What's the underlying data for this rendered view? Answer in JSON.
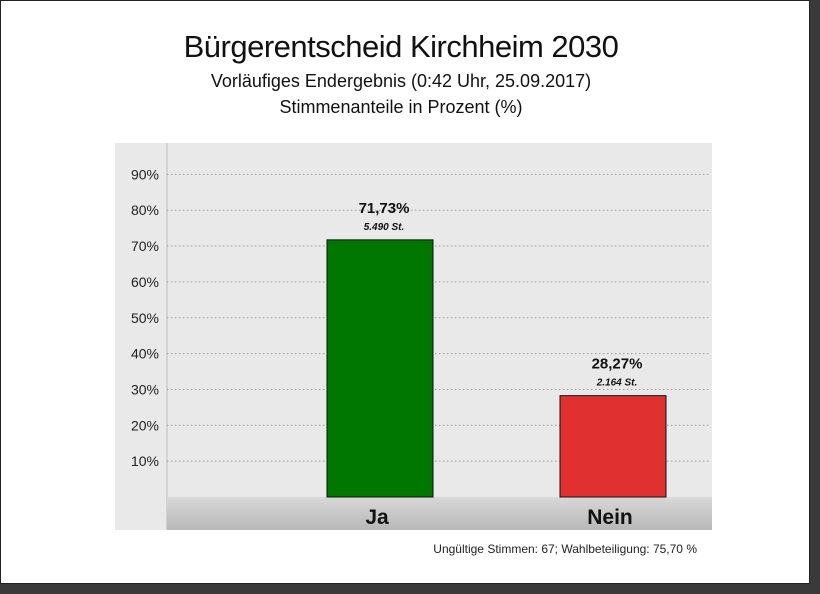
{
  "chart_data": {
    "type": "bar",
    "title": "Bürgerentscheid Kirchheim 2030",
    "subtitle": [
      "Vorläufiges Endergebnis (0:42 Uhr, 25.09.2017)",
      "Stimmenanteile in Prozent (%)"
    ],
    "categories": [
      "Ja",
      "Nein"
    ],
    "values": [
      71.73,
      28.27
    ],
    "value_labels": [
      "71,73%",
      "28,27%"
    ],
    "vote_labels": [
      "5.490 St.",
      "2.164 St."
    ],
    "colors": [
      "#007700",
      "#e03030"
    ],
    "ylim": [
      0,
      100
    ],
    "yticks": [
      10,
      20,
      30,
      40,
      50,
      60,
      70,
      80,
      90
    ],
    "ytick_labels": [
      "10%",
      "20%",
      "30%",
      "40%",
      "50%",
      "60%",
      "70%",
      "80%",
      "90%"
    ],
    "grid": true,
    "xlabel": "",
    "ylabel": ""
  },
  "footnote": "Ungültige Stimmen: 67; Wahlbeteiligung: 75,70 %"
}
